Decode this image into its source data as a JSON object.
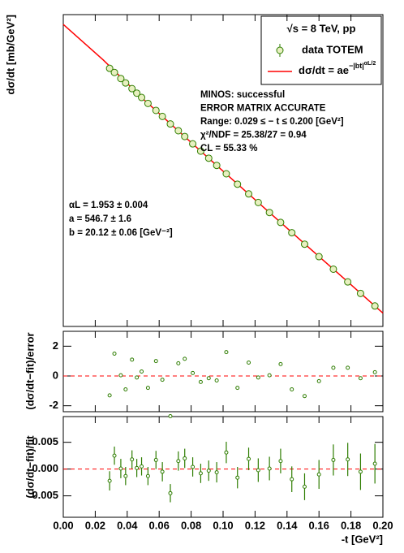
{
  "chart_data": [
    {
      "type": "scatter",
      "log": true,
      "ylabel": "dσ/dt [mb/GeV²]",
      "xlim": [
        0,
        0.2
      ],
      "ylim": [
        6.9,
        630
      ],
      "legend_title": "√s = 8 TeV, pp",
      "legend": "top-right",
      "series": [
        {
          "name": "data TOTEM",
          "color": "#2e7d00",
          "x": [
            0.029,
            0.032,
            0.036,
            0.039,
            0.043,
            0.046,
            0.049,
            0.053,
            0.058,
            0.062,
            0.067,
            0.072,
            0.076,
            0.081,
            0.086,
            0.091,
            0.096,
            0.102,
            0.109,
            0.116,
            0.122,
            0.129,
            0.136,
            0.143,
            0.151,
            0.16,
            0.169,
            0.178,
            0.186,
            0.195
          ],
          "values": [
            289.4,
            272.7,
            249.7,
            234.2,
            215.8,
            202.1,
            189.8,
            174.2,
            157.4,
            144.3,
            129.4,
            117.3,
            107.9,
            97.0,
            87.3,
            78.8,
            71.0,
            62.9,
            54.1,
            47.0,
            41.5,
            35.9,
            31.1,
            26.8,
            22.7,
            18.95,
            15.81,
            13.15,
            11.13,
            9.28
          ]
        }
      ],
      "fit": {
        "name": "dσ/dt = ae",
        "exponent": "−|bt|",
        "exponent_power": "αL/2",
        "color": "#ff0000",
        "x": [
          0,
          0.025,
          0.05,
          0.075,
          0.1,
          0.125,
          0.15,
          0.175,
          0.2
        ],
        "values": [
          546.7,
          327.0,
          185.8,
          109.9,
          65.3,
          39.0,
          23.3,
          14.0,
          8.37
        ]
      },
      "stats": [
        "MINOS: successful",
        "ERROR MATRIX ACCURATE",
        "Range: 0.029 ≤ − t ≤ 0.200 [GeV²]",
        "χ²/NDF = 25.38/27 = 0.94",
        "CL = 55.33 %"
      ],
      "parameters": [
        "αL = 1.953 ± 0.004",
        "a = 546.7 ± 1.6",
        "b = 20.12 ± 0.06 [GeV⁻²]"
      ]
    },
    {
      "type": "scatter",
      "ylabel": "(dσ/dt−fit)/error",
      "xlim": [
        0,
        0.2
      ],
      "ylim": [
        -2.4,
        3.0
      ],
      "yticks": [
        -2,
        0,
        2
      ],
      "reference_line": 0,
      "reference_color": "#ff0000",
      "color": "#2e7d00",
      "x": [
        0.029,
        0.032,
        0.036,
        0.039,
        0.043,
        0.046,
        0.049,
        0.053,
        0.058,
        0.062,
        0.067,
        0.072,
        0.076,
        0.081,
        0.086,
        0.091,
        0.096,
        0.102,
        0.109,
        0.116,
        0.122,
        0.129,
        0.136,
        0.143,
        0.151,
        0.16,
        0.169,
        0.178,
        0.186,
        0.195
      ],
      "values": [
        -1.3,
        1.5,
        0.05,
        -0.9,
        1.1,
        -0.1,
        0.3,
        -0.8,
        1.0,
        -0.25,
        -2.7,
        0.85,
        1.15,
        0.2,
        -0.4,
        -0.15,
        -0.3,
        1.6,
        -0.8,
        0.9,
        -0.1,
        0.05,
        0.8,
        -0.9,
        -1.35,
        -0.35,
        0.55,
        0.55,
        -0.15,
        0.25
      ]
    },
    {
      "type": "scatter",
      "ylabel": "(dσ/dt−fit)/fit",
      "xlabel": "-t [GeV²]",
      "xlim": [
        0,
        0.2
      ],
      "ylim": [
        -0.009,
        0.0098
      ],
      "xticks": [
        {
          "value": 0,
          "label": "0.00"
        },
        0.02,
        0.04,
        0.06,
        0.08,
        {
          "value": 0.1,
          "label": "0.10"
        },
        0.12,
        0.14,
        0.16,
        0.18,
        {
          "value": 0.2,
          "label": "0.20"
        }
      ],
      "yticks": [
        {
          "value": -0.005,
          "label": "0.005"
        },
        {
          "value": 0,
          "label": "0.000"
        },
        0.005
      ],
      "reference_line": 0,
      "reference_color": "#ff0000",
      "color": "#2e7d00",
      "x": [
        0.029,
        0.032,
        0.036,
        0.039,
        0.043,
        0.046,
        0.049,
        0.053,
        0.058,
        0.062,
        0.067,
        0.072,
        0.076,
        0.081,
        0.086,
        0.091,
        0.096,
        0.102,
        0.109,
        0.116,
        0.122,
        0.129,
        0.136,
        0.143,
        0.151,
        0.16,
        0.169,
        0.178,
        0.186,
        0.195
      ],
      "values": [
        -0.0022,
        0.0025,
        0.0001,
        -0.0013,
        0.0018,
        0.0002,
        0.0005,
        -0.0013,
        0.0017,
        -0.0005,
        -0.0045,
        0.0015,
        0.002,
        0.0004,
        -0.0008,
        -0.0003,
        -0.0006,
        0.0031,
        -0.0016,
        0.0019,
        -0.0002,
        0.0001,
        0.0015,
        -0.0019,
        -0.0033,
        -0.001,
        0.0017,
        0.0018,
        -0.0005,
        0.001
      ],
      "errors": [
        0.0018,
        0.0017,
        0.0018,
        0.0017,
        0.0017,
        0.0017,
        0.0017,
        0.0017,
        0.0017,
        0.0018,
        0.0017,
        0.0018,
        0.0018,
        0.0018,
        0.0018,
        0.0019,
        0.0019,
        0.002,
        0.002,
        0.0021,
        0.0022,
        0.0022,
        0.0023,
        0.0024,
        0.0025,
        0.0027,
        0.0029,
        0.0031,
        0.0034,
        0.0037
      ]
    }
  ]
}
